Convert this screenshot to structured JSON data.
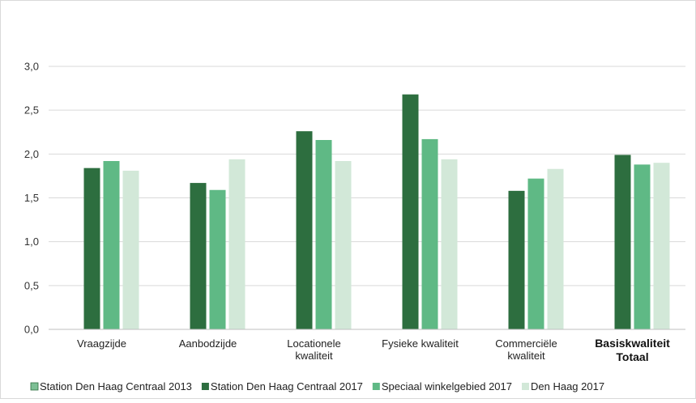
{
  "chart_data": {
    "type": "bar",
    "title": "",
    "xlabel": "",
    "ylabel": "",
    "ylim": [
      0,
      3.0
    ],
    "yticks": [
      "0,0",
      "0,5",
      "1,0",
      "1,5",
      "2,0",
      "2,5",
      "3,0"
    ],
    "grid": true,
    "legend_position": "bottom",
    "categories": [
      {
        "lines": [
          "Vraagzijde"
        ],
        "bold": false
      },
      {
        "lines": [
          "Aanbodzijde"
        ],
        "bold": false
      },
      {
        "lines": [
          "Locationele",
          "kwaliteit"
        ],
        "bold": false
      },
      {
        "lines": [
          "Fysieke kwaliteit"
        ],
        "bold": false
      },
      {
        "lines": [
          "Commerciële",
          "kwaliteit"
        ],
        "bold": false
      },
      {
        "lines": [
          "Basiskwaliteit",
          "Totaal"
        ],
        "bold": true
      }
    ],
    "series": [
      {
        "name": "Station Den Haag Centraal 2013",
        "color": "#7dbf95",
        "values": [
          null,
          null,
          null,
          null,
          null,
          null
        ]
      },
      {
        "name": "Station Den Haag Centraal 2017",
        "color": "#2d6e3f",
        "values": [
          1.84,
          1.67,
          2.26,
          2.68,
          1.58,
          1.99
        ]
      },
      {
        "name": "Speciaal winkelgebied 2017",
        "color": "#5fb985",
        "values": [
          1.92,
          1.59,
          2.16,
          2.17,
          1.72,
          1.88
        ]
      },
      {
        "name": "Den Haag 2017",
        "color": "#d2e8d8",
        "values": [
          1.81,
          1.94,
          1.92,
          1.94,
          1.83,
          1.9
        ]
      }
    ]
  }
}
